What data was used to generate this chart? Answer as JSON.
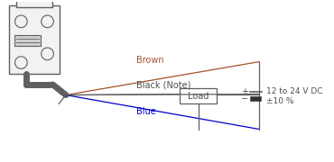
{
  "bg_color": "#ffffff",
  "line_color": "#606060",
  "brown_color": "#A0522D",
  "black_color": "#404040",
  "blue_color": "#0000CD",
  "text_color": "#505050",
  "labels": {
    "brown": "Brown",
    "black": "Black (Note)",
    "blue": "Blue",
    "load": "Load",
    "voltage": "12 to 24 V DC",
    "tolerance": "±10 %"
  },
  "figsize": [
    3.7,
    1.8
  ],
  "dpi": 100
}
